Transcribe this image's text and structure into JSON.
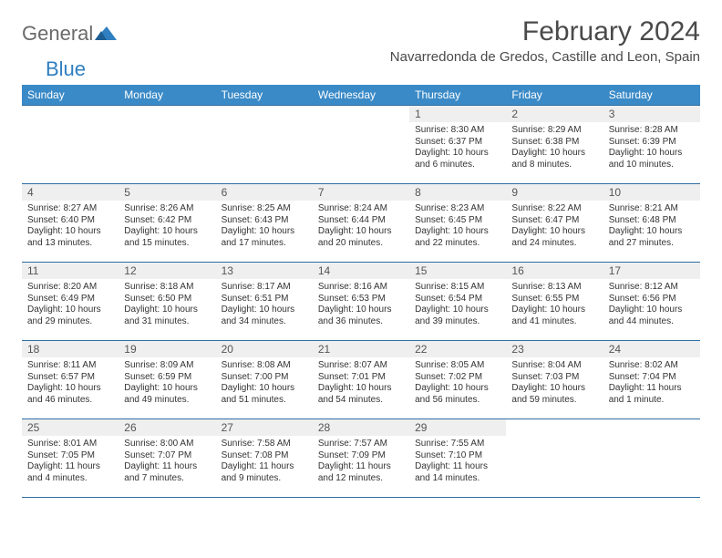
{
  "logo": {
    "text1": "General",
    "text2": "Blue"
  },
  "header": {
    "title": "February 2024",
    "location": "Navarredonda de Gredos, Castille and Leon, Spain"
  },
  "colors": {
    "headerbar": "#3a8ac7",
    "rowline": "#2f6ea3",
    "daynum_bg": "#efefef",
    "logo_gray": "#6a6a6a",
    "logo_blue": "#2f7fc1"
  },
  "columns": [
    "Sunday",
    "Monday",
    "Tuesday",
    "Wednesday",
    "Thursday",
    "Friday",
    "Saturday"
  ],
  "weeks": [
    [
      null,
      null,
      null,
      null,
      {
        "n": "1",
        "sunrise": "8:30 AM",
        "sunset": "6:37 PM",
        "daylight": "10 hours and 6 minutes."
      },
      {
        "n": "2",
        "sunrise": "8:29 AM",
        "sunset": "6:38 PM",
        "daylight": "10 hours and 8 minutes."
      },
      {
        "n": "3",
        "sunrise": "8:28 AM",
        "sunset": "6:39 PM",
        "daylight": "10 hours and 10 minutes."
      }
    ],
    [
      {
        "n": "4",
        "sunrise": "8:27 AM",
        "sunset": "6:40 PM",
        "daylight": "10 hours and 13 minutes."
      },
      {
        "n": "5",
        "sunrise": "8:26 AM",
        "sunset": "6:42 PM",
        "daylight": "10 hours and 15 minutes."
      },
      {
        "n": "6",
        "sunrise": "8:25 AM",
        "sunset": "6:43 PM",
        "daylight": "10 hours and 17 minutes."
      },
      {
        "n": "7",
        "sunrise": "8:24 AM",
        "sunset": "6:44 PM",
        "daylight": "10 hours and 20 minutes."
      },
      {
        "n": "8",
        "sunrise": "8:23 AM",
        "sunset": "6:45 PM",
        "daylight": "10 hours and 22 minutes."
      },
      {
        "n": "9",
        "sunrise": "8:22 AM",
        "sunset": "6:47 PM",
        "daylight": "10 hours and 24 minutes."
      },
      {
        "n": "10",
        "sunrise": "8:21 AM",
        "sunset": "6:48 PM",
        "daylight": "10 hours and 27 minutes."
      }
    ],
    [
      {
        "n": "11",
        "sunrise": "8:20 AM",
        "sunset": "6:49 PM",
        "daylight": "10 hours and 29 minutes."
      },
      {
        "n": "12",
        "sunrise": "8:18 AM",
        "sunset": "6:50 PM",
        "daylight": "10 hours and 31 minutes."
      },
      {
        "n": "13",
        "sunrise": "8:17 AM",
        "sunset": "6:51 PM",
        "daylight": "10 hours and 34 minutes."
      },
      {
        "n": "14",
        "sunrise": "8:16 AM",
        "sunset": "6:53 PM",
        "daylight": "10 hours and 36 minutes."
      },
      {
        "n": "15",
        "sunrise": "8:15 AM",
        "sunset": "6:54 PM",
        "daylight": "10 hours and 39 minutes."
      },
      {
        "n": "16",
        "sunrise": "8:13 AM",
        "sunset": "6:55 PM",
        "daylight": "10 hours and 41 minutes."
      },
      {
        "n": "17",
        "sunrise": "8:12 AM",
        "sunset": "6:56 PM",
        "daylight": "10 hours and 44 minutes."
      }
    ],
    [
      {
        "n": "18",
        "sunrise": "8:11 AM",
        "sunset": "6:57 PM",
        "daylight": "10 hours and 46 minutes."
      },
      {
        "n": "19",
        "sunrise": "8:09 AM",
        "sunset": "6:59 PM",
        "daylight": "10 hours and 49 minutes."
      },
      {
        "n": "20",
        "sunrise": "8:08 AM",
        "sunset": "7:00 PM",
        "daylight": "10 hours and 51 minutes."
      },
      {
        "n": "21",
        "sunrise": "8:07 AM",
        "sunset": "7:01 PM",
        "daylight": "10 hours and 54 minutes."
      },
      {
        "n": "22",
        "sunrise": "8:05 AM",
        "sunset": "7:02 PM",
        "daylight": "10 hours and 56 minutes."
      },
      {
        "n": "23",
        "sunrise": "8:04 AM",
        "sunset": "7:03 PM",
        "daylight": "10 hours and 59 minutes."
      },
      {
        "n": "24",
        "sunrise": "8:02 AM",
        "sunset": "7:04 PM",
        "daylight": "11 hours and 1 minute."
      }
    ],
    [
      {
        "n": "25",
        "sunrise": "8:01 AM",
        "sunset": "7:05 PM",
        "daylight": "11 hours and 4 minutes."
      },
      {
        "n": "26",
        "sunrise": "8:00 AM",
        "sunset": "7:07 PM",
        "daylight": "11 hours and 7 minutes."
      },
      {
        "n": "27",
        "sunrise": "7:58 AM",
        "sunset": "7:08 PM",
        "daylight": "11 hours and 9 minutes."
      },
      {
        "n": "28",
        "sunrise": "7:57 AM",
        "sunset": "7:09 PM",
        "daylight": "11 hours and 12 minutes."
      },
      {
        "n": "29",
        "sunrise": "7:55 AM",
        "sunset": "7:10 PM",
        "daylight": "11 hours and 14 minutes."
      },
      null,
      null
    ]
  ],
  "labels": {
    "sunrise": "Sunrise: ",
    "sunset": "Sunset: ",
    "daylight": "Daylight: "
  }
}
